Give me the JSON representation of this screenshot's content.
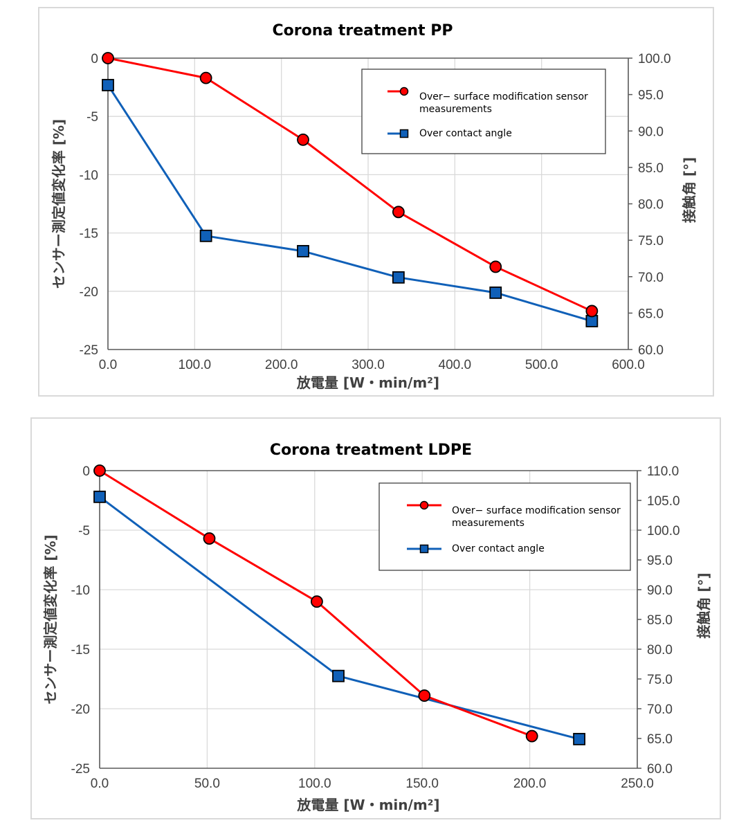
{
  "chart_data": [
    {
      "type": "line",
      "title": "Corona treatment PP",
      "xlabel": "放電量 [W・min/m²]",
      "ylabel": "センサー測定値変化率 [%]",
      "y2label": "接触角 [°]",
      "xlim": [
        0,
        600
      ],
      "ylim": [
        -25,
        0
      ],
      "y2lim": [
        60,
        100
      ],
      "x_ticks": [
        "0.0",
        "100.0",
        "200.0",
        "300.0",
        "400.0",
        "500.0",
        "600.0"
      ],
      "y_ticks": [
        "0",
        "-5",
        "-10",
        "-15",
        "-20",
        "-25"
      ],
      "y2_ticks": [
        "100.0",
        "95.0",
        "90.0",
        "85.0",
        "80.0",
        "75.0",
        "70.0",
        "65.0",
        "60.0"
      ],
      "grid": true,
      "legend_position": "top-right",
      "series": [
        {
          "name": "Over− surface modification sensor measurements",
          "legend_lines": [
            "Over− surface modification sensor",
            "measurements"
          ],
          "axis": "left",
          "color": "#ff0000",
          "marker": "circle",
          "x": [
            0,
            113,
            225,
            335,
            447,
            558
          ],
          "y": [
            0,
            -1.7,
            -7.0,
            -13.2,
            -17.9,
            -21.7
          ]
        },
        {
          "name": "Over contact angle",
          "legend_lines": [
            "Over contact angle"
          ],
          "axis": "right",
          "color": "#1060b8",
          "marker": "square",
          "x": [
            0,
            113,
            225,
            335,
            447,
            558
          ],
          "y": [
            96.3,
            75.6,
            73.5,
            69.9,
            67.8,
            63.9
          ]
        }
      ]
    },
    {
      "type": "line",
      "title": "Corona treatment LDPE",
      "xlabel": "放電量 [W・min/m²]",
      "ylabel": "センサー測定値変化率 [%]",
      "y2label": "接触角 [°]",
      "xlim": [
        0,
        250
      ],
      "ylim": [
        -25,
        0
      ],
      "y2lim": [
        60,
        110
      ],
      "x_ticks": [
        "0.0",
        "50.0",
        "100.0",
        "150.0",
        "200.0",
        "250.0"
      ],
      "y_ticks": [
        "0",
        "-5",
        "-10",
        "-15",
        "-20",
        "-25"
      ],
      "y2_ticks": [
        "110.0",
        "105.0",
        "100.0",
        "95.0",
        "90.0",
        "85.0",
        "80.0",
        "75.0",
        "70.0",
        "65.0",
        "60.0"
      ],
      "grid": true,
      "legend_position": "top-right",
      "series": [
        {
          "name": "Over− surface modification sensor measurements",
          "legend_lines": [
            "Over− surface modification sensor",
            "measurements"
          ],
          "axis": "left",
          "color": "#ff0000",
          "marker": "circle",
          "x": [
            0,
            51,
            101,
            151,
            201
          ],
          "y": [
            0,
            -5.7,
            -11.0,
            -18.9,
            -22.3
          ]
        },
        {
          "name": "Over contact angle",
          "legend_lines": [
            "Over contact angle"
          ],
          "axis": "right",
          "color": "#1060b8",
          "marker": "square",
          "x": [
            0,
            111,
            223
          ],
          "y": [
            105.6,
            75.5,
            64.9
          ]
        }
      ]
    }
  ]
}
